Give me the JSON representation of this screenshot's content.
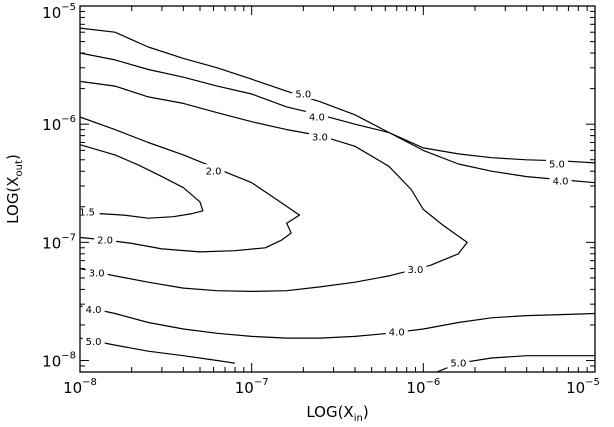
{
  "chart_data": {
    "type": "contour",
    "xlabel": {
      "base": "LOG(X",
      "sub": "in",
      "close": ")"
    },
    "ylabel": {
      "base": "LOG(X",
      "sub": "out",
      "close": ")"
    },
    "x_scale": "log",
    "y_scale": "log",
    "xlim": [
      1e-08,
      1e-05
    ],
    "ylim": [
      8e-09,
      1e-05
    ],
    "x_ticks": [
      {
        "value": 1e-08,
        "base": "10",
        "exp": "−8"
      },
      {
        "value": 1e-07,
        "base": "10",
        "exp": "−7"
      },
      {
        "value": 1e-06,
        "base": "10",
        "exp": "−6"
      },
      {
        "value": 1e-05,
        "base": "10",
        "exp": "−5"
      }
    ],
    "y_ticks": [
      {
        "value": 1e-08,
        "base": "10",
        "exp": "−8"
      },
      {
        "value": 1e-07,
        "base": "10",
        "exp": "−7"
      },
      {
        "value": 1e-06,
        "base": "10",
        "exp": "−6"
      },
      {
        "value": 1e-05,
        "base": "10",
        "exp": "−5"
      }
    ],
    "contours": [
      {
        "level": "5.0",
        "points": [
          [
            1e-08,
            6.5e-06
          ],
          [
            1.6e-08,
            6e-06
          ],
          [
            2.5e-08,
            4.5e-06
          ],
          [
            4e-08,
            3.6e-06
          ],
          [
            6.3e-08,
            3e-06
          ],
          [
            1e-07,
            2.4e-06
          ],
          [
            1.6e-07,
            1.9e-06
          ],
          [
            2.5e-07,
            1.55e-06
          ],
          [
            4e-07,
            1.2e-06
          ],
          [
            6.3e-07,
            8.5e-07
          ],
          [
            1e-06,
            6.3e-07
          ],
          [
            1.6e-06,
            5.6e-07
          ],
          [
            2.5e-06,
            5.2e-07
          ],
          [
            4e-06,
            5e-07
          ],
          [
            6.3e-06,
            4.9e-07
          ],
          [
            1e-05,
            4.7e-07
          ]
        ],
        "labels": [
          {
            "x": 2e-07,
            "y": 1.8e-06
          },
          {
            "x": 6e-06,
            "y": 4.6e-07
          }
        ]
      },
      {
        "level": "4.0",
        "points": [
          [
            1e-08,
            4e-06
          ],
          [
            1.6e-08,
            3.5e-06
          ],
          [
            2.5e-08,
            2.9e-06
          ],
          [
            4e-08,
            2.5e-06
          ],
          [
            6.3e-08,
            2.1e-06
          ],
          [
            1e-07,
            1.8e-06
          ],
          [
            1.6e-07,
            1.4e-06
          ],
          [
            2.5e-07,
            1.2e-06
          ],
          [
            4e-07,
            1e-06
          ],
          [
            6.3e-07,
            8.5e-07
          ],
          [
            1e-06,
            6e-07
          ],
          [
            1.6e-06,
            4.6e-07
          ],
          [
            2.5e-06,
            4e-07
          ],
          [
            4e-06,
            3.6e-07
          ],
          [
            6.3e-06,
            3.4e-07
          ],
          [
            1e-05,
            3.2e-07
          ]
        ],
        "labels": [
          {
            "x": 2.4e-07,
            "y": 1.15e-06
          },
          {
            "x": 6.3e-06,
            "y": 3.3e-07
          }
        ]
      },
      {
        "level": "3.0",
        "points": [
          [
            1e-08,
            2.3e-06
          ],
          [
            1.6e-08,
            2.1e-06
          ],
          [
            2.5e-08,
            1.7e-06
          ],
          [
            4e-08,
            1.5e-06
          ],
          [
            6.3e-08,
            1.25e-06
          ],
          [
            1e-07,
            1.05e-06
          ],
          [
            1.6e-07,
            9e-07
          ],
          [
            2.5e-07,
            8e-07
          ],
          [
            4e-07,
            6.5e-07
          ],
          [
            6.3e-07,
            4.4e-07
          ],
          [
            8.5e-07,
            2.8e-07
          ],
          [
            1e-06,
            1.9e-07
          ],
          [
            1.3e-06,
            1.4e-07
          ],
          [
            1.8e-06,
            1e-07
          ],
          [
            1.6e-06,
            8e-08
          ],
          [
            1.1e-06,
            6.4e-08
          ],
          [
            6.3e-07,
            5.2e-08
          ],
          [
            4e-07,
            4.6e-08
          ],
          [
            2.5e-07,
            4.2e-08
          ],
          [
            1.6e-07,
            3.9e-08
          ],
          [
            1e-07,
            3.85e-08
          ],
          [
            6.3e-08,
            3.9e-08
          ],
          [
            4e-08,
            4.1e-08
          ],
          [
            2.5e-08,
            4.6e-08
          ],
          [
            1.6e-08,
            5.2e-08
          ],
          [
            1e-08,
            6e-08
          ]
        ],
        "labels": [
          {
            "x": 2.5e-07,
            "y": 7.8e-07
          },
          {
            "x": 9e-07,
            "y": 5.9e-08
          },
          {
            "x": 1.25e-08,
            "y": 5.5e-08
          }
        ]
      },
      {
        "level": "2.0",
        "points": [
          [
            1e-08,
            1.15e-06
          ],
          [
            1.6e-08,
            9e-07
          ],
          [
            2.5e-08,
            7e-07
          ],
          [
            4e-08,
            5.5e-07
          ],
          [
            6.3e-08,
            4.2e-07
          ],
          [
            1e-07,
            3.2e-07
          ],
          [
            1.4e-07,
            2.3e-07
          ],
          [
            1.9e-07,
            1.7e-07
          ],
          [
            1.6e-07,
            1.45e-07
          ],
          [
            1.7e-07,
            1.2e-07
          ],
          [
            1.5e-07,
            1.05e-07
          ],
          [
            1.2e-07,
            9e-08
          ],
          [
            8e-08,
            8.5e-08
          ],
          [
            5e-08,
            8.3e-08
          ],
          [
            3e-08,
            8.8e-08
          ],
          [
            2e-08,
            9.8e-08
          ],
          [
            1.4e-08,
            1.05e-07
          ],
          [
            1e-08,
            1.1e-07
          ]
        ],
        "labels": [
          {
            "x": 6e-08,
            "y": 4e-07
          },
          {
            "x": 1.4e-08,
            "y": 1.05e-07
          }
        ]
      },
      {
        "level": "1.5",
        "points": [
          [
            1e-08,
            6.7e-07
          ],
          [
            1.6e-08,
            5.5e-07
          ],
          [
            2.2e-08,
            4.5e-07
          ],
          [
            3e-08,
            3.6e-07
          ],
          [
            4e-08,
            2.9e-07
          ],
          [
            5e-08,
            2.2e-07
          ],
          [
            5.2e-08,
            1.85e-07
          ],
          [
            4.5e-08,
            1.75e-07
          ],
          [
            3.5e-08,
            1.65e-07
          ],
          [
            2.5e-08,
            1.6e-07
          ],
          [
            1.8e-08,
            1.7e-07
          ],
          [
            1.3e-08,
            1.75e-07
          ]
        ],
        "labels": [
          {
            "x": 1.1e-08,
            "y": 1.8e-07
          }
        ]
      },
      {
        "level": "4.0",
        "points": [
          [
            1e-08,
            2.9e-08
          ],
          [
            1.6e-08,
            2.5e-08
          ],
          [
            2.5e-08,
            2.1e-08
          ],
          [
            4e-08,
            1.85e-08
          ],
          [
            6.3e-08,
            1.7e-08
          ],
          [
            1e-07,
            1.6e-08
          ],
          [
            1.6e-07,
            1.55e-08
          ],
          [
            2.5e-07,
            1.55e-08
          ],
          [
            4e-07,
            1.6e-08
          ],
          [
            6.3e-07,
            1.7e-08
          ],
          [
            1e-06,
            1.85e-08
          ],
          [
            1.6e-06,
            2.1e-08
          ],
          [
            2.5e-06,
            2.3e-08
          ],
          [
            4e-06,
            2.4e-08
          ],
          [
            6.3e-06,
            2.45e-08
          ],
          [
            1e-05,
            2.5e-08
          ]
        ],
        "labels": [
          {
            "x": 7e-07,
            "y": 1.75e-08
          },
          {
            "x": 1.2e-08,
            "y": 2.7e-08
          }
        ]
      },
      {
        "level": "5.0",
        "points": [
          [
            1e-08,
            1.55e-08
          ],
          [
            1.6e-08,
            1.35e-08
          ],
          [
            2.5e-08,
            1.2e-08
          ],
          [
            4e-08,
            1.1e-08
          ],
          [
            6.3e-08,
            1e-08
          ],
          [
            8e-08,
            9.5e-09
          ]
        ],
        "labels": [
          {
            "x": 1.2e-08,
            "y": 1.45e-08
          }
        ]
      },
      {
        "level": "5.0",
        "points": [
          [
            1.2e-06,
            8e-09
          ],
          [
            1.6e-06,
            9.5e-09
          ],
          [
            2.5e-06,
            1.05e-08
          ],
          [
            4e-06,
            1.1e-08
          ],
          [
            6.3e-06,
            1.1e-08
          ],
          [
            1e-05,
            1.1e-08
          ]
        ],
        "labels": [
          {
            "x": 1.6e-06,
            "y": 9.5e-09
          }
        ]
      }
    ]
  }
}
